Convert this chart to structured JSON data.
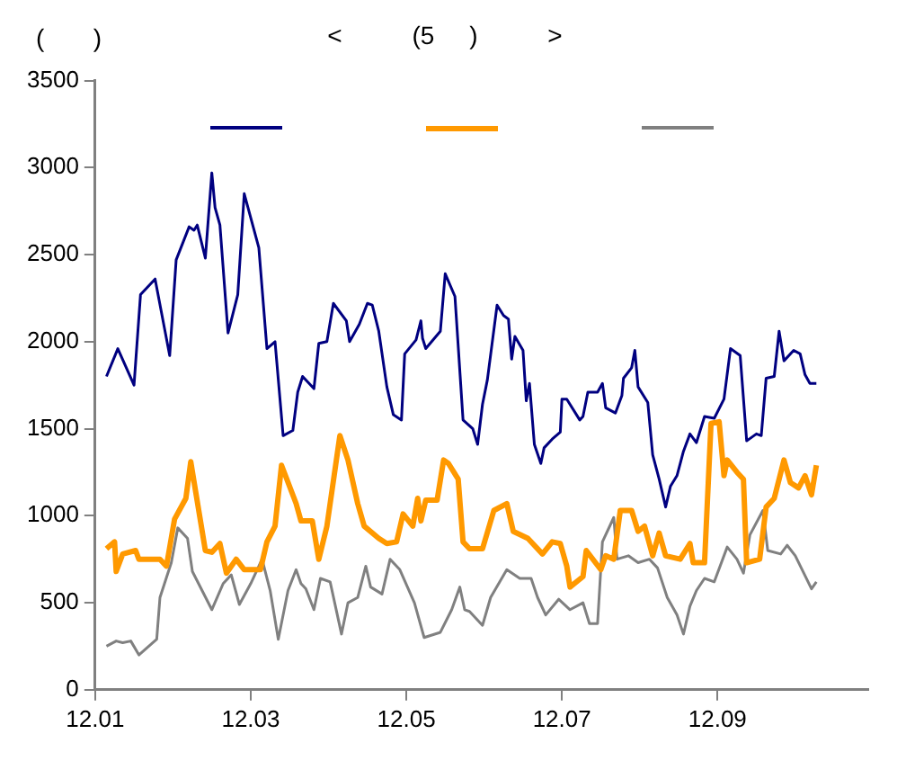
{
  "chart_data": {
    "type": "line",
    "title": "<          (5     )          >",
    "annotations": [
      "(       )"
    ],
    "xlim": [
      "--12-01",
      "--12-10T22:30"
    ],
    "xticks": [
      {
        "value": "--12-01",
        "label": "12.01"
      },
      {
        "value": "--12-03",
        "label": "12.03"
      },
      {
        "value": "--12-05",
        "label": "12.05"
      },
      {
        "value": "--12-07",
        "label": "12.07"
      },
      {
        "value": "--12-09",
        "label": "12.09"
      }
    ],
    "ylim": [
      0,
      3500
    ],
    "yticks": [
      0,
      500,
      1000,
      1500,
      2000,
      2500,
      3000,
      3500
    ],
    "grid": false,
    "marker": "none",
    "line_style": "solid",
    "series": [
      {
        "color": "#000080",
        "x": [
          "--12-01T03:30",
          "--12-01T07:00",
          "--12-01T12:00",
          "--12-01T14:00",
          "--12-01T18:30",
          "--12-01T23:00",
          "--12-02T01:00",
          "--12-02T05:00",
          "--12-02T06:30",
          "--12-02T07:30",
          "--12-02T10:00",
          "--12-02T12:00",
          "--12-02T13:00",
          "--12-02T14:30",
          "--12-02T17:00",
          "--12-02T20:00",
          "--12-02T22:00",
          "--12-03T02:30",
          "--12-03T05:00",
          "--12-03T07:30",
          "--12-03T10:00",
          "--12-03T13:00",
          "--12-03T14:30",
          "--12-03T16:00",
          "--12-03T19:30",
          "--12-03T21:00",
          "--12-03T23:30",
          "--12-04T01:30",
          "--12-04T05:30",
          "--12-04T06:30",
          "--12-04T09:30",
          "--12-04T12:00",
          "--12-04T13:30",
          "--12-04T15:30",
          "--12-04T18:00",
          "--12-04T20:00",
          "--12-04T22:30",
          "--12-04T23:30",
          "--12-05T03:00",
          "--12-05T04:30",
          "--12-05T05:00",
          "--12-05T06:00",
          "--12-05T10:30",
          "--12-05T12:00",
          "--12-05T15:00",
          "--12-05T17:30",
          "--12-05T20:30",
          "--12-05T22:00",
          "--12-05T23:30",
          "--12-06T01:00",
          "--12-06T04:00",
          "--12-06T06:00",
          "--12-06T07:30",
          "--12-06T08:30",
          "--12-06T09:30",
          "--12-06T12:00",
          "--12-06T13:00",
          "--12-06T14:00",
          "--12-06T15:30",
          "--12-06T17:30",
          "--12-06T18:30",
          "--12-06T21:00",
          "--12-06T23:30",
          "--12-07T00:00",
          "--12-07T01:30",
          "--12-07T05:30",
          "--12-07T06:30",
          "--12-07T08:00",
          "--12-07T11:00",
          "--12-07T12:30",
          "--12-07T13:30",
          "--12-07T16:30",
          "--12-07T18:30",
          "--12-07T19:00",
          "--12-07T21:30",
          "--12-07T22:30",
          "--12-07T23:30",
          "--12-08T02:30",
          "--12-08T04:00",
          "--12-08T06:00",
          "--12-08T08:00",
          "--12-08T09:30",
          "--12-08T11:30",
          "--12-08T13:30",
          "--12-08T15:30",
          "--12-08T17:30",
          "--12-08T20:00",
          "--12-08T23:00",
          "--12-09T02:00",
          "--12-09T04:00",
          "--12-09T07:00",
          "--12-09T09:00",
          "--12-09T12:00",
          "--12-09T13:30",
          "--12-09T15:00",
          "--12-09T17:30",
          "--12-09T19:00",
          "--12-09T20:30",
          "--12-09T23:30",
          "--12-10T01:30",
          "--12-10T03:00",
          "--12-10T04:30",
          "--12-10T06:30"
        ],
        "values": [
          1800,
          1960,
          1750,
          2270,
          2360,
          1920,
          2470,
          2660,
          2640,
          2670,
          2480,
          2970,
          2770,
          2670,
          2050,
          2270,
          2850,
          2540,
          1960,
          2000,
          1460,
          1490,
          1710,
          1800,
          1730,
          1990,
          2000,
          2220,
          2120,
          2000,
          2100,
          2220,
          2210,
          2060,
          1740,
          1580,
          1550,
          1930,
          2010,
          2120,
          2020,
          1960,
          2060,
          2390,
          2260,
          1550,
          1500,
          1410,
          1640,
          1780,
          2210,
          2150,
          2130,
          1900,
          2030,
          1950,
          1660,
          1760,
          1410,
          1300,
          1390,
          1440,
          1480,
          1670,
          1670,
          1550,
          1570,
          1710,
          1710,
          1760,
          1620,
          1590,
          1690,
          1790,
          1850,
          1950,
          1740,
          1650,
          1350,
          1210,
          1050,
          1170,
          1230,
          1370,
          1470,
          1420,
          1570,
          1560,
          1670,
          1960,
          1920,
          1430,
          1470,
          1460,
          1790,
          1800,
          2060,
          1890,
          1950,
          1930,
          1810,
          1760,
          1760
        ]
      },
      {
        "color": "#ff9900",
        "x": [
          "--12-01T03:30",
          "--12-01T06:00",
          "--12-01T06:30",
          "--12-01T08:30",
          "--12-01T12:30",
          "--12-01T13:30",
          "--12-01T20:00",
          "--12-01T22:00",
          "--12-02T00:30",
          "--12-02T04:00",
          "--12-02T05:30",
          "--12-02T07:00",
          "--12-02T10:00",
          "--12-02T12:00",
          "--12-02T14:30",
          "--12-02T16:30",
          "--12-02T19:30",
          "--12-02T22:00",
          "--12-03T03:00",
          "--12-03T05:00",
          "--12-03T07:30",
          "--12-03T09:30",
          "--12-03T14:00",
          "--12-03T15:30",
          "--12-03T19:00",
          "--12-03T21:00",
          "--12-03T23:30",
          "--12-04T03:30",
          "--12-04T06:00",
          "--12-04T09:00",
          "--12-04T11:00",
          "--12-04T15:30",
          "--12-04T18:00",
          "--12-04T21:00",
          "--12-04T23:00",
          "--12-05T02:00",
          "--12-05T03:30",
          "--12-05T04:30",
          "--12-05T06:00",
          "--12-05T09:30",
          "--12-05T11:30",
          "--12-05T13:00",
          "--12-05T16:00",
          "--12-05T17:30",
          "--12-05T19:30",
          "--12-05T23:30",
          "--12-06T03:00",
          "--12-06T07:00",
          "--12-06T09:00",
          "--12-06T13:30",
          "--12-06T18:00",
          "--12-06T21:00",
          "--12-06T23:30",
          "--12-07T01:30",
          "--12-07T02:30",
          "--12-07T06:30",
          "--12-07T07:30",
          "--12-07T12:00",
          "--12-07T13:30",
          "--12-07T16:00",
          "--12-07T18:00",
          "--12-07T21:30",
          "--12-07T23:30",
          "--12-08T01:30",
          "--12-08T04:00",
          "--12-08T06:00",
          "--12-08T08:00",
          "--12-08T12:30",
          "--12-08T15:30",
          "--12-08T16:30",
          "--12-08T20:00",
          "--12-08T22:00",
          "--12-09T00:30",
          "--12-09T02:00",
          "--12-09T03:00",
          "--12-09T06:00",
          "--12-09T08:00",
          "--12-09T09:00",
          "--12-09T13:00",
          "--12-09T15:00",
          "--12-09T17:30",
          "--12-09T20:30",
          "--12-09T22:30",
          "--12-10T01:00",
          "--12-10T03:00",
          "--12-10T05:00",
          "--12-10T06:30"
        ],
        "values": [
          810,
          850,
          680,
          780,
          800,
          750,
          750,
          710,
          980,
          1100,
          1310,
          1140,
          800,
          790,
          840,
          670,
          750,
          690,
          690,
          850,
          940,
          1290,
          1070,
          970,
          970,
          750,
          940,
          1460,
          1320,
          1070,
          940,
          870,
          840,
          850,
          1010,
          940,
          1100,
          970,
          1090,
          1090,
          1320,
          1300,
          1210,
          850,
          810,
          810,
          1030,
          1070,
          910,
          870,
          780,
          850,
          840,
          710,
          590,
          650,
          800,
          690,
          770,
          750,
          1030,
          1030,
          910,
          940,
          770,
          900,
          770,
          750,
          840,
          730,
          730,
          1530,
          1540,
          1230,
          1320,
          1250,
          1210,
          730,
          750,
          1050,
          1100,
          1320,
          1190,
          1160,
          1230,
          1120,
          1290
        ]
      },
      {
        "color": "#808080",
        "x": [
          "--12-01T03:30",
          "--12-01T06:30",
          "--12-01T08:30",
          "--12-01T11:00",
          "--12-01T13:30",
          "--12-01T19:00",
          "--12-01T20:00",
          "--12-01T23:30",
          "--12-02T01:30",
          "--12-02T04:30",
          "--12-02T06:00",
          "--12-02T09:00",
          "--12-02T12:00",
          "--12-02T15:30",
          "--12-02T18:00",
          "--12-02T20:30",
          "--12-03T00:00",
          "--12-03T03:30",
          "--12-03T06:00",
          "--12-03T08:30",
          "--12-03T11:30",
          "--12-03T14:00",
          "--12-03T15:30",
          "--12-03T17:00",
          "--12-03T19:30",
          "--12-03T21:30",
          "--12-04T00:30",
          "--12-04T04:00",
          "--12-04T06:00",
          "--12-04T09:00",
          "--12-04T11:30",
          "--12-04T13:00",
          "--12-04T16:30",
          "--12-04T19:00",
          "--12-04T22:00",
          "--12-05T02:30",
          "--12-05T05:30",
          "--12-05T10:30",
          "--12-05T14:00",
          "--12-05T16:30",
          "--12-05T18:00",
          "--12-05T19:30",
          "--12-05T23:30",
          "--12-06T02:00",
          "--12-06T07:00",
          "--12-06T11:00",
          "--12-06T14:30",
          "--12-06T16:30",
          "--12-06T19:00",
          "--12-06T23:00",
          "--12-07T02:30",
          "--12-07T06:30",
          "--12-07T08:30",
          "--12-07T11:00",
          "--12-07T12:30",
          "--12-07T16:00",
          "--12-07T17:00",
          "--12-07T20:30",
          "--12-07T23:30",
          "--12-08T03:00",
          "--12-08T05:30",
          "--12-08T08:30",
          "--12-08T11:30",
          "--12-08T13:30",
          "--12-08T15:30",
          "--12-08T17:30",
          "--12-08T20:00",
          "--12-08T23:00",
          "--12-09T03:00",
          "--12-09T06:00",
          "--12-09T08:00",
          "--12-09T10:00",
          "--12-09T14:00",
          "--12-09T15:30",
          "--12-09T19:30",
          "--12-09T21:30",
          "--12-10T00:00",
          "--12-10T05:00",
          "--12-10T06:30"
        ],
        "values": [
          250,
          280,
          270,
          280,
          200,
          290,
          530,
          730,
          930,
          870,
          680,
          570,
          460,
          610,
          660,
          490,
          610,
          750,
          570,
          290,
          570,
          690,
          610,
          580,
          460,
          640,
          620,
          320,
          500,
          530,
          710,
          590,
          550,
          750,
          690,
          500,
          300,
          330,
          460,
          590,
          460,
          450,
          370,
          530,
          690,
          640,
          640,
          530,
          430,
          520,
          460,
          500,
          380,
          380,
          850,
          990,
          750,
          770,
          730,
          750,
          700,
          530,
          430,
          320,
          480,
          570,
          640,
          620,
          820,
          750,
          670,
          890,
          1030,
          800,
          780,
          830,
          770,
          580,
          620
        ]
      }
    ]
  }
}
